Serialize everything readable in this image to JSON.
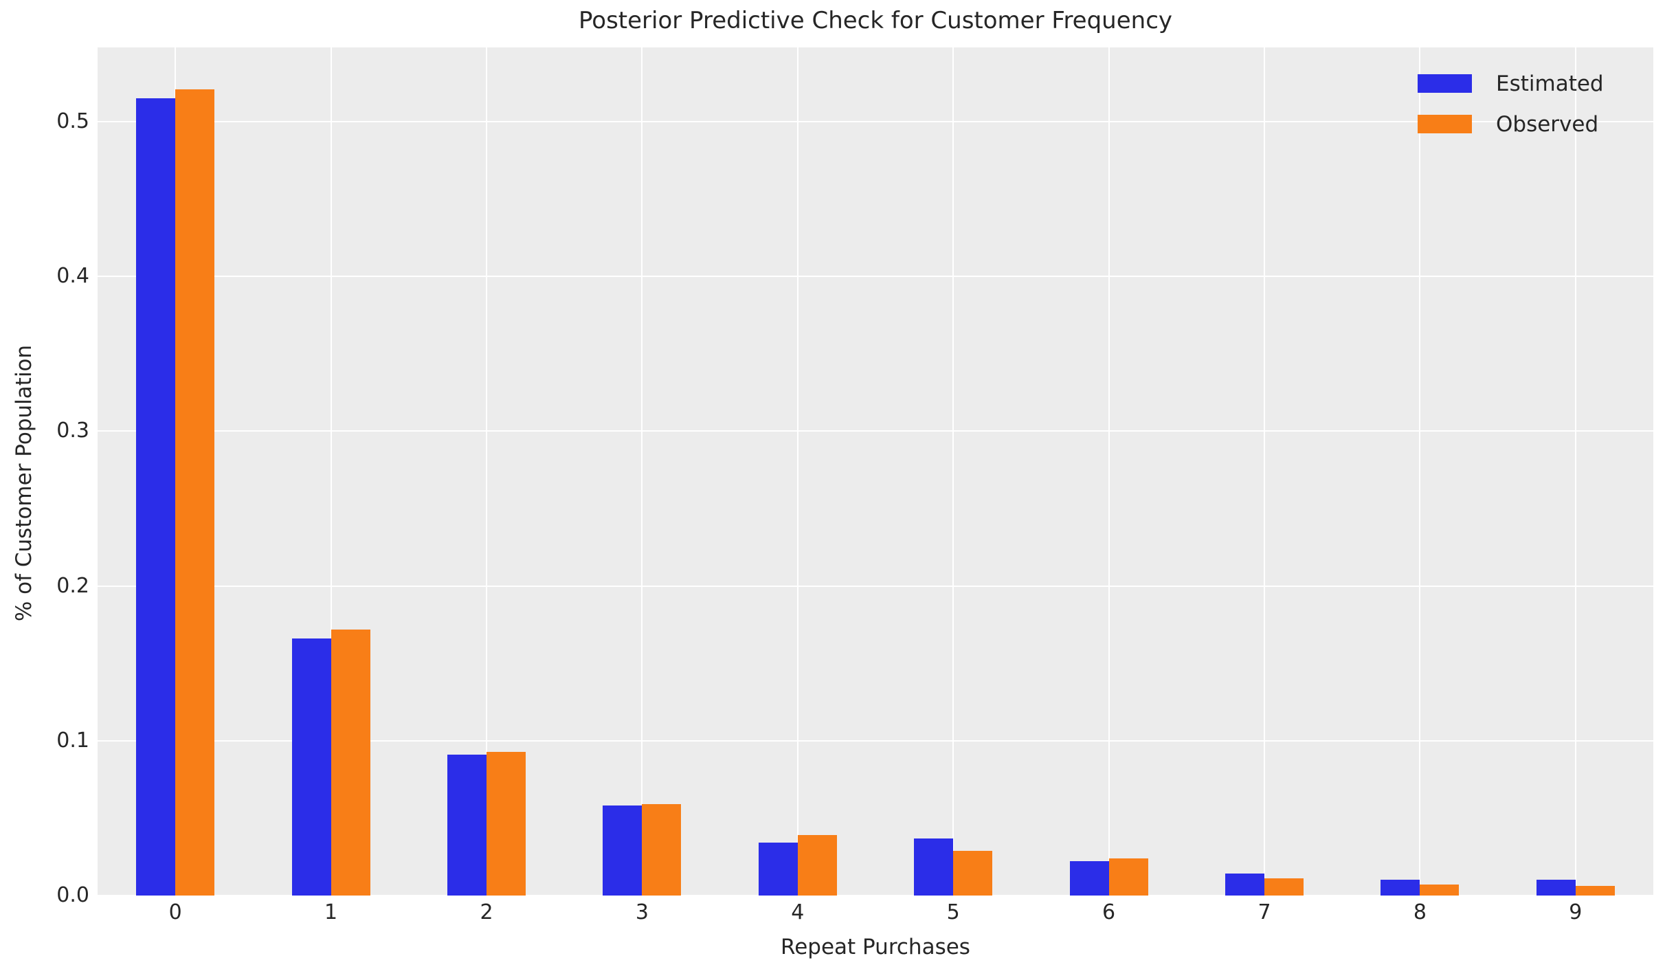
{
  "chart_data": {
    "type": "bar",
    "title": "Posterior Predictive Check for Customer Frequency",
    "xlabel": "Repeat Purchases",
    "ylabel": "% of Customer Population",
    "categories": [
      "0",
      "1",
      "2",
      "3",
      "4",
      "5",
      "6",
      "7",
      "8",
      "9"
    ],
    "series": [
      {
        "name": "Estimated",
        "color": "#2b2de8",
        "values": [
          0.515,
          0.166,
          0.091,
          0.058,
          0.034,
          0.037,
          0.022,
          0.014,
          0.01,
          0.01
        ]
      },
      {
        "name": "Observed",
        "color": "#f87e17",
        "values": [
          0.521,
          0.172,
          0.093,
          0.059,
          0.039,
          0.029,
          0.024,
          0.011,
          0.007,
          0.006
        ]
      }
    ],
    "ylim": [
      0,
      0.548
    ],
    "yticks": [
      0.0,
      0.1,
      0.2,
      0.3,
      0.4,
      0.5
    ],
    "grid": true,
    "legend_position": "upper right",
    "plot_bg_color": "#ececec",
    "grid_color": "#ffffff",
    "text_color": "#262626",
    "figure_bg_color": "#ffffff"
  }
}
